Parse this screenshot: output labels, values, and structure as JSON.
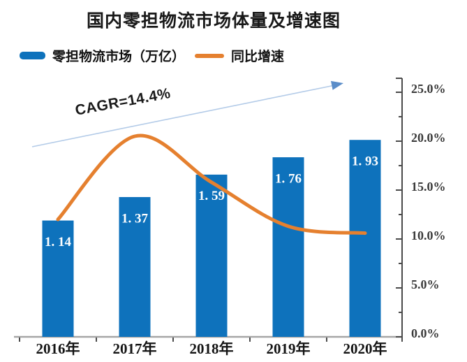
{
  "header": {
    "title": "国内零担物流市场体量及增速图"
  },
  "legend": {
    "items": [
      {
        "label": "零担物流市场（万亿）",
        "swatch": "bar",
        "color": "#0e72bc"
      },
      {
        "label": "同比增速",
        "swatch": "line",
        "color": "#e5802f"
      }
    ]
  },
  "annotation": {
    "cagr": "CAGR=14.4%"
  },
  "colors": {
    "bar": "#0e72bc",
    "line": "#e5802f",
    "arrow_line": "#b3cbe8",
    "arrow_head": "#5b8dc9",
    "x_axis_line": "#a6a6a6",
    "tick": "#4a4a4a",
    "right_axis_line": "#4a4a4a",
    "x_label": "#141414",
    "y_label": "#3a3a3a",
    "bar_label": "#ffffff"
  },
  "chart_data": {
    "type": "bar",
    "subtype": "combo-bar-line",
    "title": "国内零担物流市场体量及增速图",
    "categories": [
      "2016年",
      "2017年",
      "2018年",
      "2019年",
      "2020年"
    ],
    "series": [
      {
        "name": "零担物流市场（万亿）",
        "type": "bar",
        "unit": "万亿",
        "values": [
          1.14,
          1.37,
          1.59,
          1.76,
          1.93
        ],
        "labels": [
          "1. 14",
          "1. 37",
          "1. 59",
          "1. 76",
          "1. 93"
        ],
        "color": "#0e72bc",
        "axis": "left-hidden"
      },
      {
        "name": "同比增速",
        "type": "line",
        "unit": "%",
        "values": [
          12.0,
          20.5,
          15.8,
          11.3,
          10.6
        ],
        "color": "#e5802f",
        "axis": "right"
      }
    ],
    "right_axis": {
      "tick_labels": [
        "0.0%",
        "5.0%",
        "10.0%",
        "15.0%",
        "20.0%",
        "25.0%"
      ],
      "min": 0,
      "max": 25,
      "major_step": 5,
      "minor_step": 2.5,
      "position": "right"
    },
    "annotations": [
      {
        "text": "CAGR=14.4%",
        "kind": "trend-arrow"
      }
    ],
    "grid": false,
    "legend_position": "top-left"
  }
}
